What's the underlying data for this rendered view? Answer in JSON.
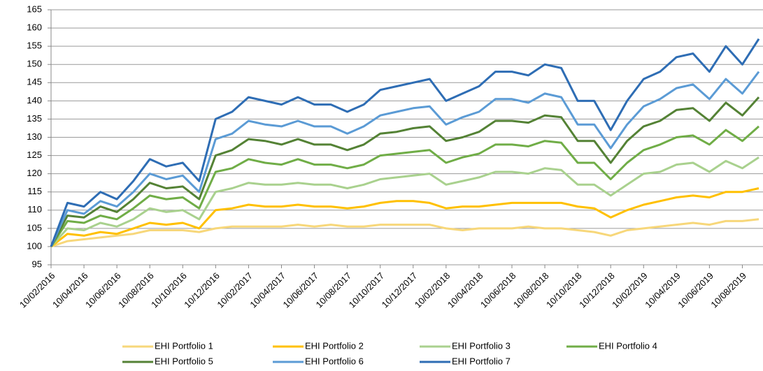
{
  "chart_data": {
    "type": "line",
    "categories": [
      "10/02/2016",
      null,
      "10/04/2016",
      null,
      "10/06/2016",
      null,
      "10/08/2016",
      null,
      "10/10/2016",
      null,
      "10/12/2016",
      null,
      "10/02/2017",
      null,
      "10/04/2017",
      null,
      "10/06/2017",
      null,
      "10/08/2017",
      null,
      "10/10/2017",
      null,
      "10/12/2017",
      null,
      "10/02/2018",
      null,
      "10/04/2018",
      null,
      "10/06/2018",
      null,
      "10/08/2018",
      null,
      "10/10/2018",
      null,
      "10/12/2018",
      null,
      "10/02/2019",
      null,
      "10/04/2019",
      null,
      "10/06/2019",
      null,
      "10/08/2019",
      null
    ],
    "series": [
      {
        "name": "EHI Portfolio 1",
        "color": "#f7d77a",
        "values": [
          100,
          101.5,
          102,
          102.5,
          103,
          103.5,
          104.5,
          104.5,
          104.5,
          104,
          105,
          105.5,
          105.5,
          105.5,
          105.5,
          106,
          105.5,
          106,
          105.5,
          105.5,
          106,
          106,
          106,
          106,
          105,
          104.5,
          105,
          105,
          105,
          105.5,
          105,
          105,
          104.5,
          104,
          103,
          104.5,
          105,
          105.5,
          106,
          106.5,
          106,
          107,
          107,
          107.5
        ]
      },
      {
        "name": "EHI Portfolio 2",
        "color": "#ffc000",
        "values": [
          100,
          103.5,
          103,
          104,
          103.5,
          105,
          106.5,
          106,
          106.5,
          105,
          110,
          110.5,
          111.5,
          111,
          111,
          111.5,
          111,
          111,
          110.5,
          111,
          112,
          112.5,
          112.5,
          112,
          110.5,
          111,
          111,
          111.5,
          112,
          112,
          112,
          112,
          111,
          110.5,
          108,
          110,
          111.5,
          112.5,
          113.5,
          114,
          113.5,
          115,
          115,
          116
        ]
      },
      {
        "name": "EHI Portfolio 3",
        "color": "#a9d18e",
        "values": [
          100,
          105,
          104.5,
          106.5,
          105.5,
          107.5,
          110.5,
          109.5,
          110,
          107.5,
          115,
          116,
          117.5,
          117,
          117,
          117.5,
          117,
          117,
          116,
          117,
          118.5,
          119,
          119.5,
          120,
          117,
          118,
          119,
          120.5,
          120.5,
          120,
          121.5,
          121,
          117,
          117,
          114,
          117,
          120,
          120.5,
          122.5,
          123,
          120.5,
          123.5,
          121.5,
          124.5
        ]
      },
      {
        "name": "EHI Portfolio 4",
        "color": "#70ad47",
        "values": [
          100,
          107,
          106.5,
          108.5,
          107.5,
          110.5,
          114,
          113,
          113.5,
          110.5,
          120.5,
          121.5,
          124,
          123,
          122.5,
          124,
          122.5,
          122.5,
          121.5,
          122.5,
          125,
          125.5,
          126,
          126.5,
          123,
          124.5,
          125.5,
          128,
          128,
          127.5,
          129,
          128.5,
          123,
          123,
          118.5,
          123,
          126.5,
          128,
          130,
          130.5,
          128,
          132,
          129,
          133
        ]
      },
      {
        "name": "EHI Portfolio 5",
        "color": "#548235",
        "values": [
          100,
          108.5,
          108,
          111,
          109.5,
          113,
          117.5,
          116,
          116.5,
          113,
          125,
          126.5,
          129.5,
          129,
          128,
          129.5,
          128,
          128,
          126.5,
          128,
          131,
          131.5,
          132.5,
          133,
          129,
          130,
          131.5,
          134.5,
          134.5,
          134,
          136,
          135.5,
          129,
          129,
          123,
          129,
          133,
          134.5,
          137.5,
          138,
          134.5,
          139.5,
          136,
          141
        ]
      },
      {
        "name": "EHI Portfolio 6",
        "color": "#5b9bd5",
        "values": [
          100,
          110,
          109,
          112.5,
          111,
          115,
          120,
          118.5,
          119.5,
          115,
          129.5,
          131,
          134.5,
          133.5,
          133,
          134.5,
          133,
          133,
          131,
          133,
          136,
          137,
          138,
          138.5,
          133.5,
          135.5,
          137,
          140.5,
          140.5,
          139.5,
          142,
          141,
          133.5,
          133.5,
          127,
          133.5,
          138.5,
          140.5,
          143.5,
          144.5,
          140.5,
          146,
          142,
          148
        ]
      },
      {
        "name": "EHI Portfolio 7",
        "color": "#2e6db4",
        "values": [
          100,
          112,
          111,
          115,
          113,
          118,
          124,
          122,
          123,
          118,
          135,
          137,
          141,
          140,
          139,
          141,
          139,
          139,
          137,
          139,
          143,
          144,
          145,
          146,
          140,
          142,
          144,
          148,
          148,
          147,
          150,
          149,
          140,
          140,
          132,
          140,
          146,
          148,
          152,
          153,
          148,
          155,
          150,
          157
        ]
      }
    ],
    "ylim": [
      95,
      165
    ],
    "yticks": [
      95,
      100,
      105,
      110,
      115,
      120,
      125,
      130,
      135,
      140,
      145,
      150,
      155,
      160,
      165
    ],
    "grid": true,
    "legend": "bottom"
  }
}
